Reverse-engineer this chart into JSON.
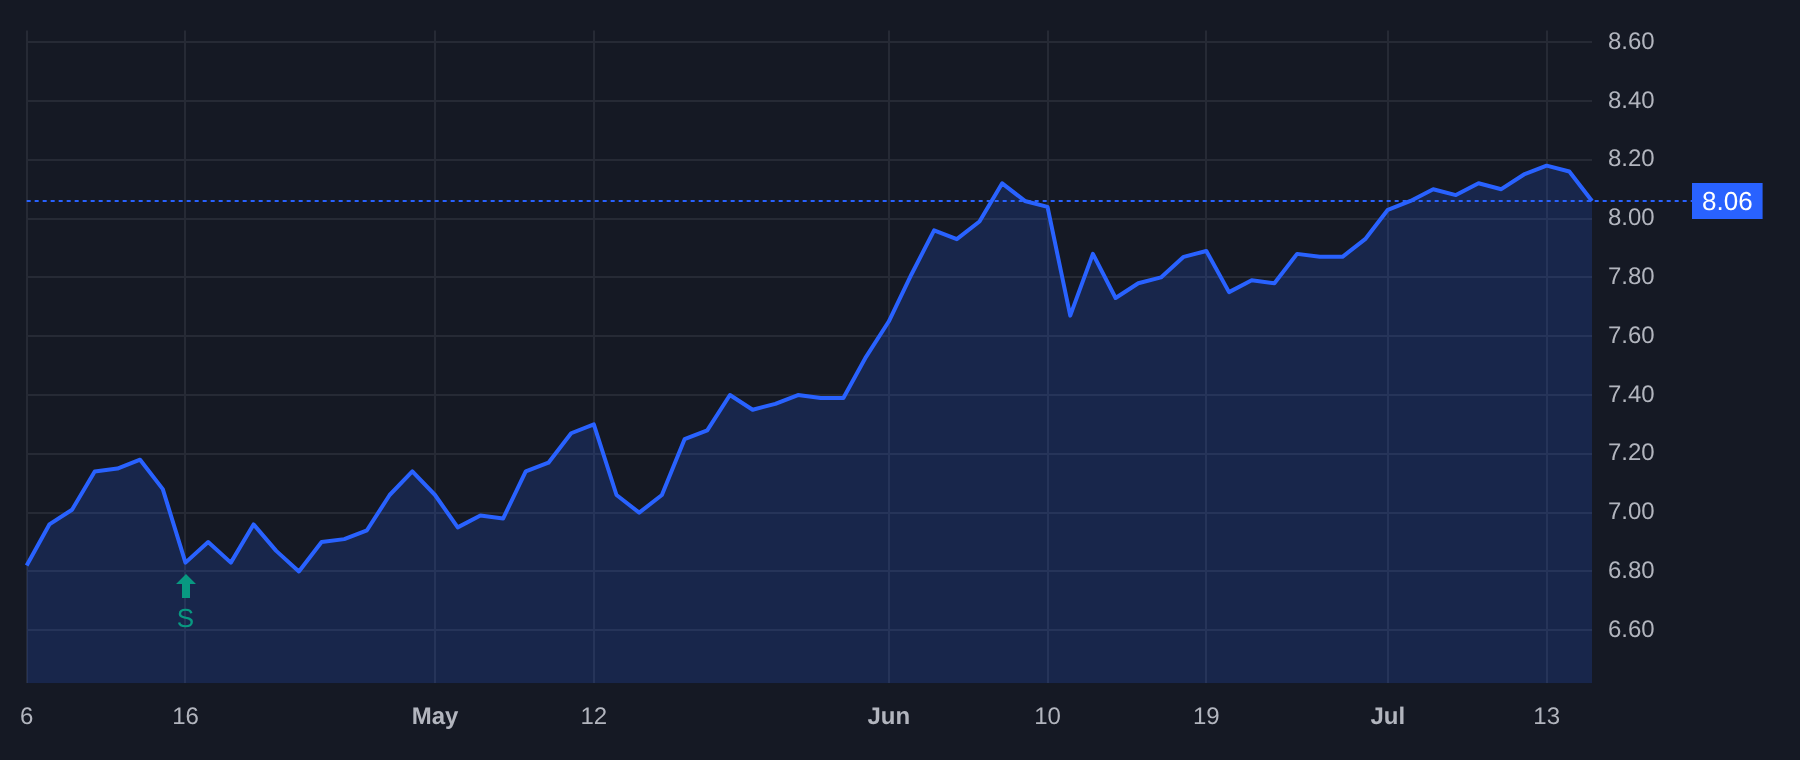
{
  "chart_data": {
    "type": "area",
    "categories": [
      "6",
      null,
      null,
      null,
      null,
      null,
      null,
      "16",
      null,
      null,
      null,
      null,
      null,
      null,
      null,
      null,
      null,
      null,
      "May",
      null,
      null,
      null,
      null,
      null,
      null,
      "12",
      null,
      null,
      null,
      null,
      null,
      null,
      null,
      null,
      null,
      null,
      null,
      null,
      "Jun",
      null,
      null,
      null,
      null,
      null,
      null,
      "10",
      null,
      null,
      null,
      null,
      null,
      null,
      "19",
      null,
      null,
      null,
      null,
      null,
      null,
      null,
      "Jul",
      null,
      null,
      null,
      null,
      null,
      null,
      "13",
      null,
      null
    ],
    "series": [
      {
        "color": "#2962ff",
        "values": [
          6.82,
          6.96,
          7.01,
          7.14,
          7.15,
          7.18,
          7.08,
          6.83,
          6.9,
          6.83,
          6.96,
          6.87,
          6.8,
          6.9,
          6.91,
          6.94,
          7.06,
          7.14,
          7.06,
          6.95,
          6.99,
          6.98,
          7.14,
          7.17,
          7.27,
          7.3,
          7.06,
          7.0,
          7.06,
          7.25,
          7.28,
          7.4,
          7.35,
          7.37,
          7.4,
          7.39,
          7.39,
          7.53,
          7.65,
          7.81,
          7.96,
          7.93,
          7.99,
          8.12,
          8.06,
          8.04,
          7.67,
          7.88,
          7.73,
          7.78,
          7.8,
          7.87,
          7.89,
          7.75,
          7.79,
          7.78,
          7.88,
          7.87,
          7.87,
          7.93,
          8.03,
          8.06,
          8.1,
          8.08,
          8.12,
          8.1,
          8.15,
          8.18,
          8.16,
          8.06
        ]
      }
    ],
    "ylim": [
      6.42,
      8.64
    ],
    "yticks": [
      {
        "value": 6.6,
        "label": "6.60"
      },
      {
        "value": 6.8,
        "label": "6.80"
      },
      {
        "value": 7.0,
        "label": "7.00"
      },
      {
        "value": 7.2,
        "label": "7.20"
      },
      {
        "value": 7.4,
        "label": "7.40"
      },
      {
        "value": 7.6,
        "label": "7.60"
      },
      {
        "value": 7.8,
        "label": "7.80"
      },
      {
        "value": 8.0,
        "label": "8.00"
      },
      {
        "value": 8.2,
        "label": "8.20"
      },
      {
        "value": 8.4,
        "label": "8.40"
      },
      {
        "value": 8.6,
        "label": "8.60"
      }
    ],
    "grid": true,
    "ref_lines": [
      {
        "axis": "y",
        "value": 8.06,
        "label": "8.06",
        "color": "#2962ff",
        "line_style": "dotted"
      }
    ],
    "annotations": [
      {
        "text": "S",
        "x": "16",
        "y": 6.83
      }
    ]
  }
}
